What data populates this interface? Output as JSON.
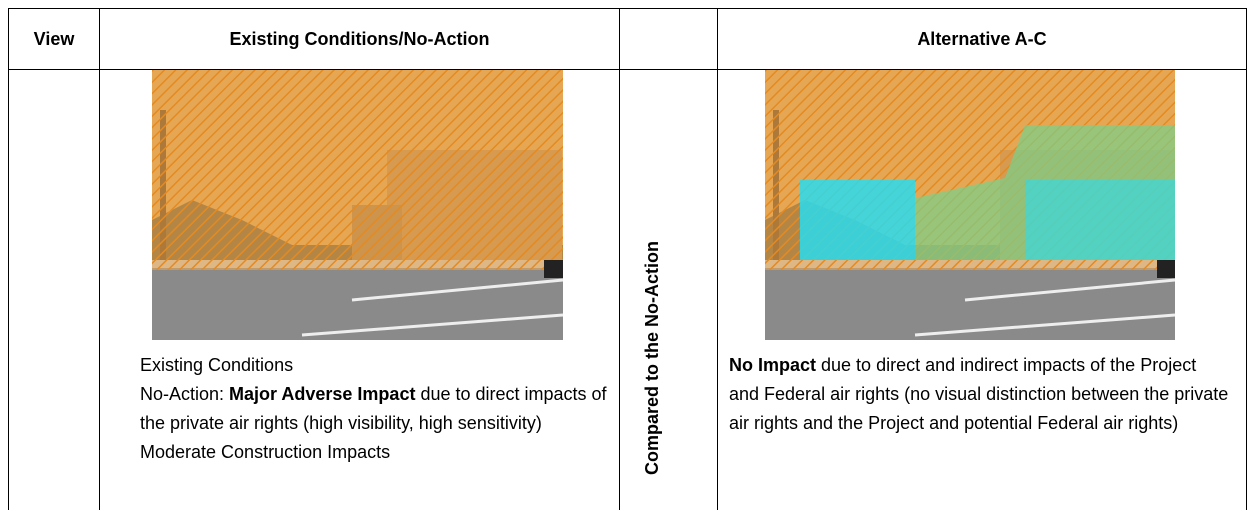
{
  "table": {
    "header": {
      "view": "View",
      "existing": "Existing Conditions/No-Action",
      "alternative": "Alternative A-C"
    },
    "comparison_label": "Compared to the No-Action",
    "existing_cell": {
      "caption": "Existing Conditions",
      "no_action": {
        "prefix": "No-Action: ",
        "bold": "Major Adverse Impact",
        "rest": " due to direct impacts of the private air rights (high visibility, high sensitivity)"
      },
      "construction": "Moderate Construction Impacts"
    },
    "alternative_cell": {
      "bold": "No Impact",
      "rest": " due to direct and indirect impacts of the Project and Federal air rights (no visual distinction between the private air rights and the Project and potential Federal air rights)"
    }
  }
}
